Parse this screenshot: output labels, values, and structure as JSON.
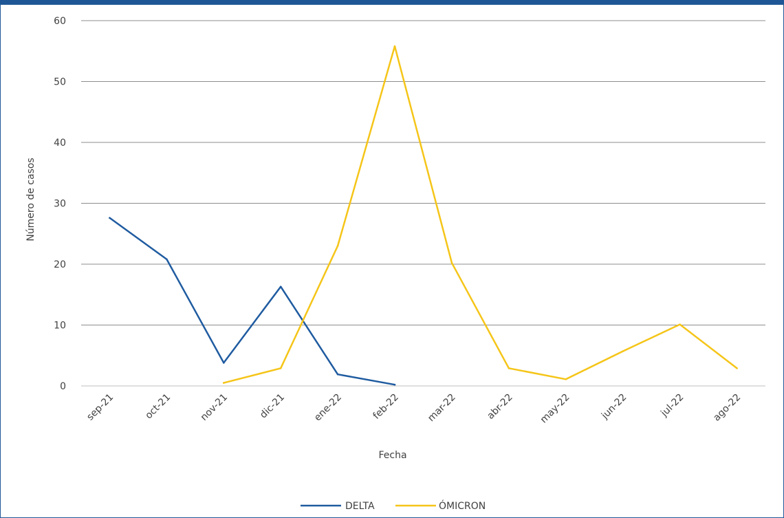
{
  "chart_data": {
    "type": "line",
    "title": "",
    "xlabel": "Fecha",
    "ylabel": "Número de casos",
    "categories": [
      "sep-21",
      "oct-21",
      "nov-21",
      "dic-21",
      "ene-22",
      "feb-22",
      "mar-22",
      "abr-22",
      "may-22",
      "jun-22",
      "jul-22",
      "ago-22"
    ],
    "ylim": [
      0,
      60
    ],
    "yticks": [
      0,
      10,
      20,
      30,
      40,
      50,
      60
    ],
    "grid": true,
    "legend_position": "bottom",
    "series": [
      {
        "name": "DELTA",
        "color": "#1f5ba0",
        "values": [
          27.6,
          20.8,
          3.8,
          16.3,
          1.9,
          0.2,
          null,
          null,
          null,
          null,
          null,
          null
        ]
      },
      {
        "name": "ÓMICRON",
        "color": "#f5c518",
        "values": [
          null,
          null,
          0.5,
          2.9,
          23.0,
          55.8,
          20.2,
          2.9,
          1.1,
          5.7,
          10.1,
          2.9
        ]
      }
    ]
  }
}
